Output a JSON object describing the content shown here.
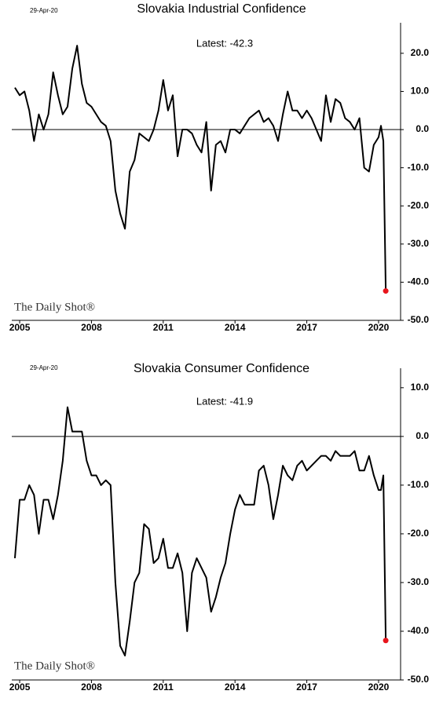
{
  "chart_data": [
    {
      "type": "line",
      "date": "29-Apr-20",
      "title": "Slovakia Industrial Confidence",
      "annotation": "Latest:  -42.3",
      "watermark": "The Daily Shot®",
      "xlim": [
        2004.67,
        2020.92
      ],
      "xticks": [
        2005,
        2008,
        2011,
        2014,
        2017,
        2020
      ],
      "ylim": [
        -50,
        28
      ],
      "yticks": [
        {
          "value": 20,
          "label": "20.0"
        },
        {
          "value": 10,
          "label": "10.0"
        },
        {
          "value": 0,
          "label": "0.0"
        },
        {
          "value": -10,
          "label": "-10.0"
        },
        {
          "value": -20,
          "label": "-20.0"
        },
        {
          "value": -30,
          "label": "-30.0"
        },
        {
          "value": -40,
          "label": "-40.0"
        },
        {
          "value": -50,
          "label": "-50.0"
        }
      ],
      "hlines": [
        0
      ],
      "grid": false,
      "last_marker_color": "#e8141c",
      "x": [
        2004.8,
        2005.0,
        2005.2,
        2005.4,
        2005.6,
        2005.8,
        2006.0,
        2006.2,
        2006.4,
        2006.6,
        2006.8,
        2007.0,
        2007.2,
        2007.4,
        2007.6,
        2007.8,
        2008.0,
        2008.2,
        2008.4,
        2008.6,
        2008.8,
        2009.0,
        2009.2,
        2009.4,
        2009.6,
        2009.8,
        2010.0,
        2010.2,
        2010.4,
        2010.6,
        2010.8,
        2011.0,
        2011.2,
        2011.4,
        2011.6,
        2011.8,
        2012.0,
        2012.2,
        2012.4,
        2012.6,
        2012.8,
        2013.0,
        2013.2,
        2013.4,
        2013.6,
        2013.8,
        2014.0,
        2014.2,
        2014.4,
        2014.6,
        2014.8,
        2015.0,
        2015.2,
        2015.4,
        2015.6,
        2015.8,
        2016.0,
        2016.2,
        2016.4,
        2016.6,
        2016.8,
        2017.0,
        2017.2,
        2017.4,
        2017.6,
        2017.8,
        2018.0,
        2018.2,
        2018.4,
        2018.6,
        2018.8,
        2019.0,
        2019.2,
        2019.4,
        2019.6,
        2019.8,
        2020.0,
        2020.1,
        2020.2,
        2020.3
      ],
      "series": [
        {
          "name": "Industrial Confidence",
          "color": "#000000",
          "values": [
            11,
            9,
            10,
            5,
            -3,
            4,
            0,
            4,
            15,
            9,
            4,
            6,
            16,
            22,
            12,
            7,
            6,
            4,
            2,
            1,
            -3,
            -16,
            -22,
            -26,
            -11,
            -8,
            -1,
            -2,
            -3,
            0,
            5,
            13,
            5,
            9,
            -7,
            0,
            0,
            -1,
            -4,
            -6,
            2,
            -16,
            -4,
            -3,
            -6,
            0,
            0,
            -1,
            1,
            3,
            4,
            5,
            2,
            3,
            1,
            -3,
            4,
            10,
            5,
            5,
            3,
            5,
            3,
            0,
            -3,
            9,
            2,
            8,
            7,
            3,
            2,
            0,
            3,
            -10,
            -11,
            -4,
            -2,
            1,
            -3,
            -42.3
          ]
        }
      ]
    },
    {
      "type": "line",
      "date": "29-Apr-20",
      "title": "Slovakia Consumer Confidence",
      "annotation": "Latest:  -41.9",
      "watermark": "The Daily Shot®",
      "xlim": [
        2004.67,
        2020.92
      ],
      "xticks": [
        2005,
        2008,
        2011,
        2014,
        2017,
        2020
      ],
      "ylim": [
        -50,
        14
      ],
      "yticks": [
        {
          "value": 10,
          "label": "10.0"
        },
        {
          "value": 0,
          "label": "0.0"
        },
        {
          "value": -10,
          "label": "-10.0"
        },
        {
          "value": -20,
          "label": "-20.0"
        },
        {
          "value": -30,
          "label": "-30.0"
        },
        {
          "value": -40,
          "label": "-40.0"
        },
        {
          "value": -50,
          "label": "-50.0"
        }
      ],
      "hlines": [
        0
      ],
      "grid": false,
      "last_marker_color": "#e8141c",
      "x": [
        2004.8,
        2005.0,
        2005.2,
        2005.4,
        2005.6,
        2005.8,
        2006.0,
        2006.2,
        2006.4,
        2006.6,
        2006.8,
        2007.0,
        2007.2,
        2007.4,
        2007.6,
        2007.8,
        2008.0,
        2008.2,
        2008.4,
        2008.6,
        2008.8,
        2009.0,
        2009.2,
        2009.4,
        2009.6,
        2009.8,
        2010.0,
        2010.2,
        2010.4,
        2010.6,
        2010.8,
        2011.0,
        2011.2,
        2011.4,
        2011.6,
        2011.8,
        2012.0,
        2012.2,
        2012.4,
        2012.6,
        2012.8,
        2013.0,
        2013.2,
        2013.4,
        2013.6,
        2013.8,
        2014.0,
        2014.2,
        2014.4,
        2014.6,
        2014.8,
        2015.0,
        2015.2,
        2015.4,
        2015.6,
        2015.8,
        2016.0,
        2016.2,
        2016.4,
        2016.6,
        2016.8,
        2017.0,
        2017.2,
        2017.4,
        2017.6,
        2017.8,
        2018.0,
        2018.2,
        2018.4,
        2018.6,
        2018.8,
        2019.0,
        2019.2,
        2019.4,
        2019.6,
        2019.8,
        2020.0,
        2020.1,
        2020.2,
        2020.3
      ],
      "series": [
        {
          "name": "Consumer Confidence",
          "color": "#000000",
          "values": [
            -25,
            -13,
            -13,
            -10,
            -12,
            -20,
            -13,
            -13,
            -17,
            -12,
            -5,
            6,
            1,
            1,
            1,
            -5,
            -8,
            -8,
            -10,
            -9,
            -10,
            -30,
            -43,
            -45,
            -38,
            -30,
            -28,
            -18,
            -19,
            -26,
            -25,
            -21,
            -27,
            -27,
            -24,
            -28,
            -40,
            -28,
            -25,
            -27,
            -29,
            -36,
            -33,
            -29,
            -26,
            -20,
            -15,
            -12,
            -14,
            -14,
            -14,
            -7,
            -6,
            -10,
            -17,
            -12,
            -6,
            -8,
            -9,
            -6,
            -5,
            -7,
            -6,
            -5,
            -4,
            -4,
            -5,
            -3,
            -4,
            -4,
            -4,
            -3,
            -7,
            -7,
            -4,
            -8,
            -11,
            -11,
            -8,
            -41.9
          ]
        }
      ]
    }
  ]
}
